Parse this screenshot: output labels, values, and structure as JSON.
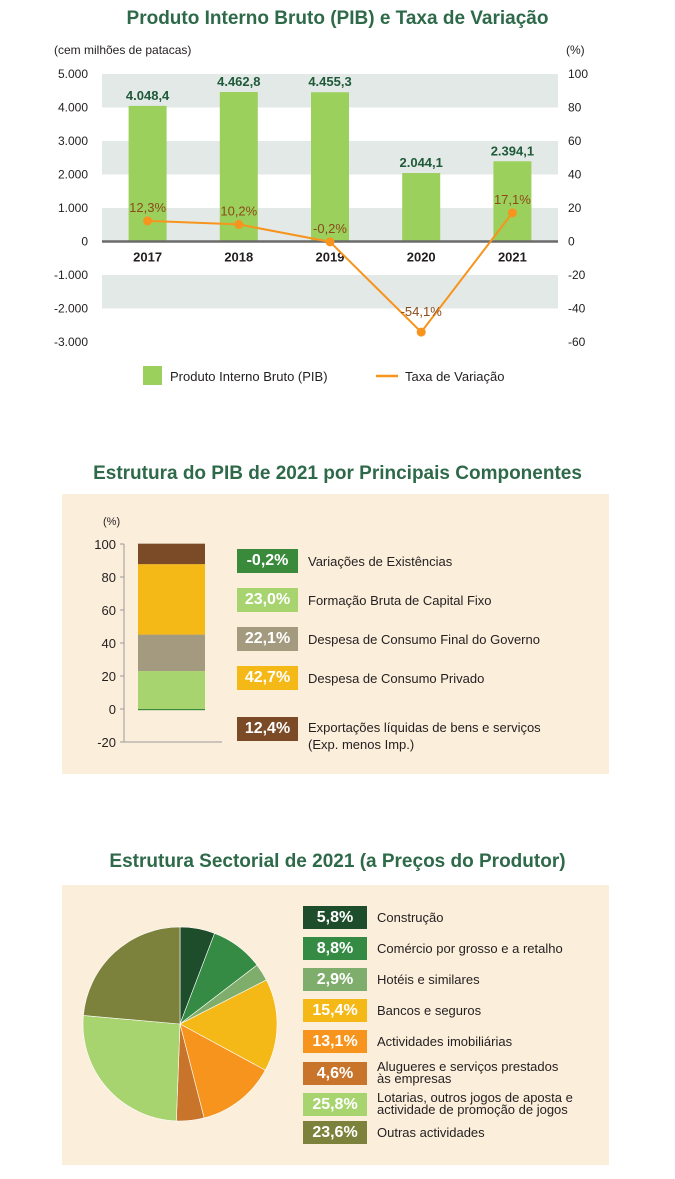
{
  "chart_data": [
    {
      "type": "bar",
      "title": "Produto Interno Bruto (PIB) e Taxa de Variação",
      "ylabel": "(cem milhões de patacas)",
      "y2label": "(%)",
      "categories": [
        "2017",
        "2018",
        "2019",
        "2020",
        "2021"
      ],
      "ylim": [
        -3000,
        5000
      ],
      "y2lim": [
        -60,
        100
      ],
      "yticks": [
        "5.000",
        "4.000",
        "3.000",
        "2.000",
        "1.000",
        "0",
        "-1.000",
        "-2.000",
        "-3.000"
      ],
      "y2ticks": [
        "100",
        "80",
        "60",
        "40",
        "20",
        "0",
        "-20",
        "-40",
        "-60"
      ],
      "series": [
        {
          "name": "Produto Interno Bruto (PIB)",
          "kind": "bar",
          "color": "#9cd05c",
          "values": [
            4048.4,
            4462.8,
            4455.3,
            2044.1,
            2394.1
          ],
          "labels": [
            "4.048,4",
            "4.462,8",
            "4.455,3",
            "2.044,1",
            "2.394,1"
          ]
        },
        {
          "name": "Taxa de Variação",
          "kind": "line",
          "axis": "right",
          "color": "#f7941d",
          "values": [
            12.3,
            10.2,
            -0.2,
            -54.1,
            17.1
          ],
          "labels": [
            "12,3%",
            "10,2%",
            "-0,2%",
            "-54,1%",
            "17,1%"
          ]
        }
      ],
      "legend_position": "bottom"
    },
    {
      "type": "bar",
      "title": "Estrutura do PIB de 2021 por Principais Componentes",
      "unit": "(%)",
      "ylim": [
        -20,
        100
      ],
      "yticks": [
        "100",
        "80",
        "60",
        "40",
        "20",
        "0",
        "-20"
      ],
      "stacked": true,
      "components": [
        {
          "name": "Variações de Existências",
          "value": -0.2,
          "label": "-0,2%",
          "color": "#3a8a3c"
        },
        {
          "name": "Formação Bruta de Capital Fixo",
          "value": 23.0,
          "label": "23,0%",
          "color": "#a8d46f"
        },
        {
          "name": "Despesa de Consumo Final do Governo",
          "value": 22.1,
          "label": "22,1%",
          "color": "#a39a80"
        },
        {
          "name": "Despesa de Consumo Privado",
          "value": 42.7,
          "label": "42,7%",
          "color": "#f4b817"
        },
        {
          "name": "Exportações líquidas de bens e serviços",
          "name2": "(Exp. menos Imp.)",
          "value": 12.4,
          "label": "12,4%",
          "color": "#7b4a26"
        }
      ]
    },
    {
      "type": "pie",
      "title": "Estrutura Sectorial de 2021 (a Preços do Produtor)",
      "slices": [
        {
          "name": "Construção",
          "value": 5.8,
          "label": "5,8%",
          "color": "#1e4d2b"
        },
        {
          "name": "Comércio por grosso e a retalho",
          "value": 8.8,
          "label": "8,8%",
          "color": "#358b43"
        },
        {
          "name": "Hotéis e similares",
          "value": 2.9,
          "label": "2,9%",
          "color": "#7fae6c"
        },
        {
          "name": "Bancos e seguros",
          "value": 15.4,
          "label": "15,4%",
          "color": "#f4b817"
        },
        {
          "name": "Actividades imobiliárias",
          "value": 13.1,
          "label": "13,1%",
          "color": "#f7941d"
        },
        {
          "name": "Alugueres e serviços prestados",
          "name2": "às empresas",
          "value": 4.6,
          "label": "4,6%",
          "color": "#c8742a"
        },
        {
          "name": "Lotarias, outros jogos de aposta e",
          "name2": "actividade de promoção de jogos",
          "value": 25.8,
          "label": "25,8%",
          "color": "#a8d46f"
        },
        {
          "name": "Outras actividades",
          "value": 23.6,
          "label": "23,6%",
          "color": "#7c823c"
        }
      ]
    }
  ]
}
